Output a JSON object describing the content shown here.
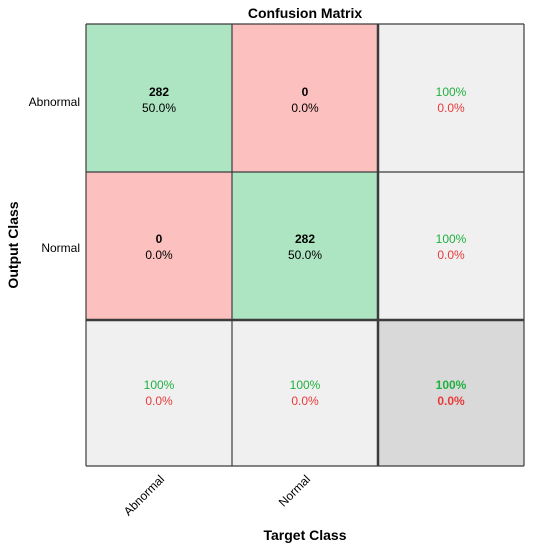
{
  "chart_data": {
    "type": "heatmap",
    "title": "Confusion Matrix",
    "xlabel": "Target Class",
    "ylabel": "Output Class",
    "classes": [
      "Abnormal",
      "Normal"
    ],
    "matrix": [
      {
        "count": "282",
        "percent": "50.0%"
      },
      {
        "count": "0",
        "percent": "0.0%"
      },
      {
        "count": "0",
        "percent": "0.0%"
      },
      {
        "count": "282",
        "percent": "50.0%"
      }
    ],
    "counts": [
      [
        282,
        0
      ],
      [
        0,
        282
      ]
    ],
    "row_summary": [
      {
        "correct": "100%",
        "incorrect": "0.0%"
      },
      {
        "correct": "100%",
        "incorrect": "0.0%"
      }
    ],
    "col_summary": [
      {
        "correct": "100%",
        "incorrect": "0.0%"
      },
      {
        "correct": "100%",
        "incorrect": "0.0%"
      }
    ],
    "overall": {
      "correct": "100%",
      "incorrect": "0.0%"
    }
  },
  "colors": {
    "correct_cell": "#ade5c2",
    "incorrect_cell": "#fcc0bf",
    "summary_cell": "#f0f0f0",
    "overall_cell": "#d9d9d9",
    "correct_text": "#20b040",
    "incorrect_text": "#e83a3a",
    "grid": "#3c3c3c"
  }
}
